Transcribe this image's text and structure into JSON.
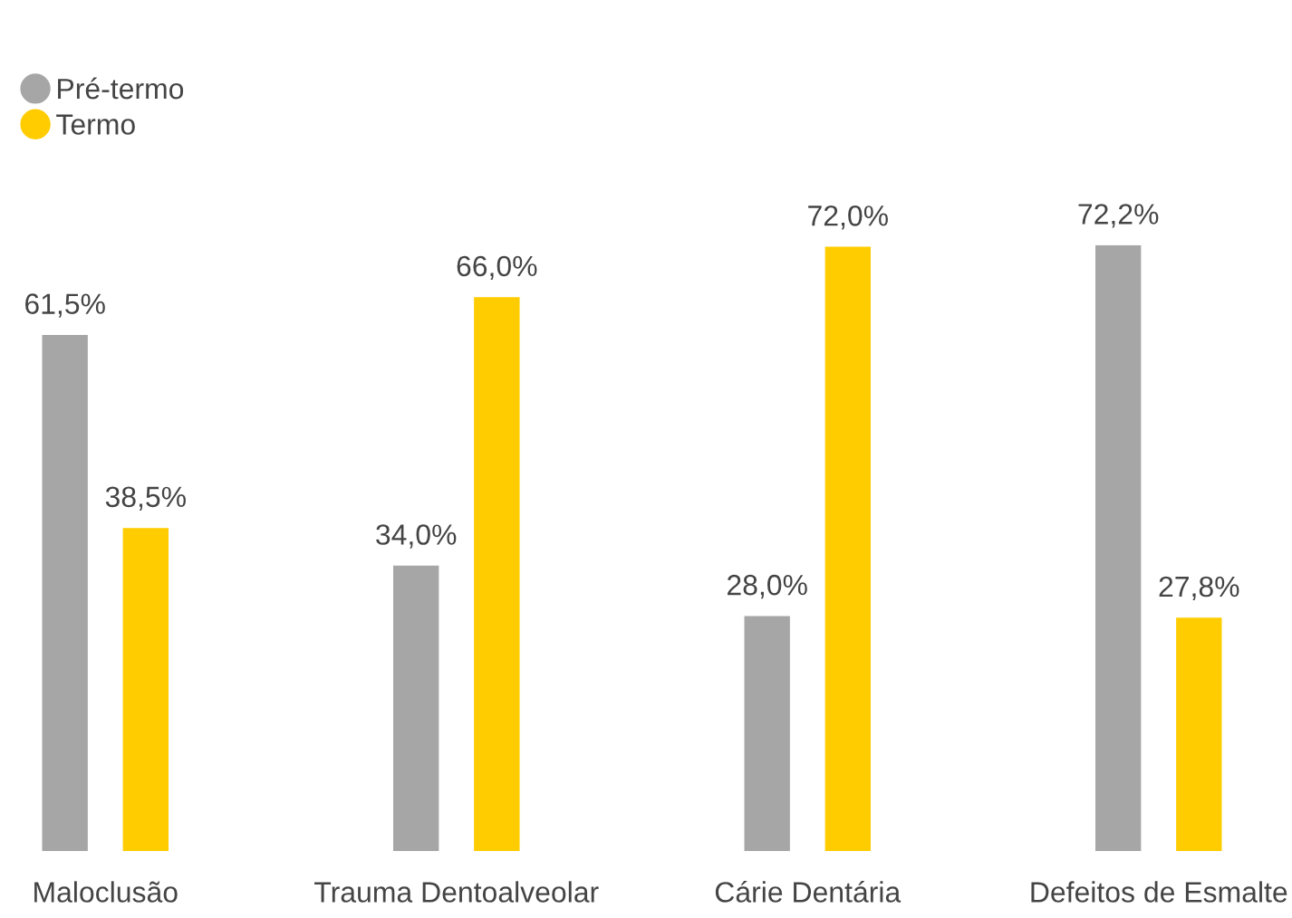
{
  "chart_data": {
    "type": "bar",
    "categories": [
      "Maloclusão",
      "Trauma Dentoalveolar",
      "Cárie Dentária",
      "Defeitos de Esmalte"
    ],
    "series": [
      {
        "name": "Pré-termo",
        "color": "#a6a6a6",
        "values": [
          61.5,
          34.0,
          28.0,
          72.2
        ],
        "value_labels": [
          "61,5%",
          "34,0%",
          "28,0%",
          "72,2%"
        ]
      },
      {
        "name": "Termo",
        "color": "#ffcc00",
        "values": [
          38.5,
          66.0,
          72.0,
          27.8
        ],
        "value_labels": [
          "38,5%",
          "66,0%",
          "72,0%",
          "27,8%"
        ]
      }
    ],
    "legend": "top left",
    "grid": false
  }
}
